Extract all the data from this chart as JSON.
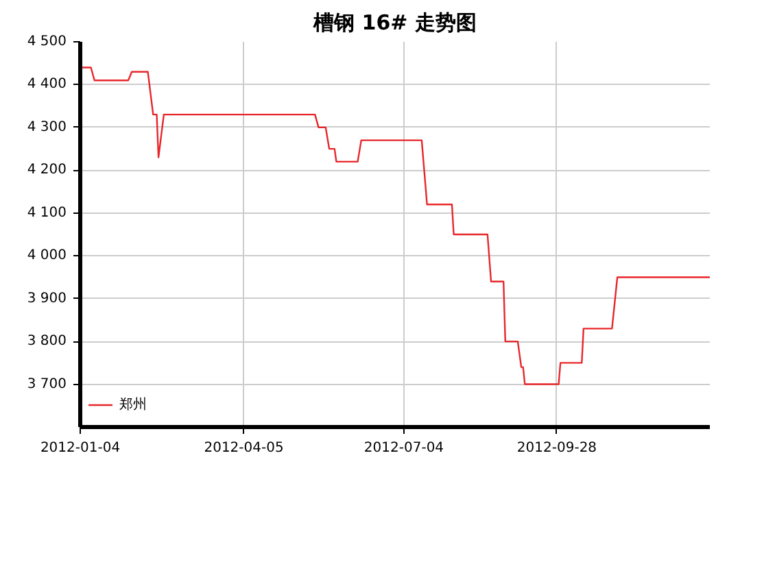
{
  "chart_data": {
    "type": "line",
    "title": "槽钢 16# 走势图",
    "x": [
      "2012-01-04",
      "2012-01-10",
      "2012-01-12",
      "2012-01-31",
      "2012-02-02",
      "2012-02-11",
      "2012-02-14",
      "2012-02-16",
      "2012-02-17",
      "2012-02-20",
      "2012-05-15",
      "2012-05-17",
      "2012-05-21",
      "2012-05-23",
      "2012-05-26",
      "2012-05-27",
      "2012-06-08",
      "2012-06-10",
      "2012-07-14",
      "2012-07-17",
      "2012-07-31",
      "2012-08-01",
      "2012-08-20",
      "2012-08-22",
      "2012-08-29",
      "2012-08-30",
      "2012-09-06",
      "2012-09-08",
      "2012-09-09",
      "2012-09-10",
      "2012-09-29",
      "2012-09-30",
      "2012-10-12",
      "2012-10-13",
      "2012-10-29",
      "2012-11-01",
      "2012-12-23"
    ],
    "series": [
      {
        "name": "郑州",
        "color": "#e8262a",
        "values": [
          4440,
          4440,
          4410,
          4410,
          4430,
          4430,
          4330,
          4330,
          4230,
          4330,
          4330,
          4300,
          4300,
          4250,
          4250,
          4220,
          4220,
          4270,
          4270,
          4120,
          4120,
          4050,
          4050,
          3940,
          3940,
          3800,
          3800,
          3740,
          3740,
          3700,
          3700,
          3750,
          3750,
          3830,
          3830,
          3950,
          3950
        ]
      }
    ],
    "xlim": [
      "2012-01-04",
      "2012-12-23"
    ],
    "xticks": [
      "2012-01-04",
      "2012-04-05",
      "2012-07-04",
      "2012-09-28"
    ],
    "ylim": [
      3600,
      4500
    ],
    "yticks": [
      {
        "value": 3700,
        "label": "3 700"
      },
      {
        "value": 3800,
        "label": "3 800"
      },
      {
        "value": 3900,
        "label": "3 900"
      },
      {
        "value": 4000,
        "label": "4 000"
      },
      {
        "value": 4100,
        "label": "4 100"
      },
      {
        "value": 4200,
        "label": "4 200"
      },
      {
        "value": 4300,
        "label": "4 300"
      },
      {
        "value": 4400,
        "label": "4 400"
      },
      {
        "value": 4500,
        "label": "4 500"
      }
    ],
    "grid": true,
    "legend": "bottom left"
  }
}
